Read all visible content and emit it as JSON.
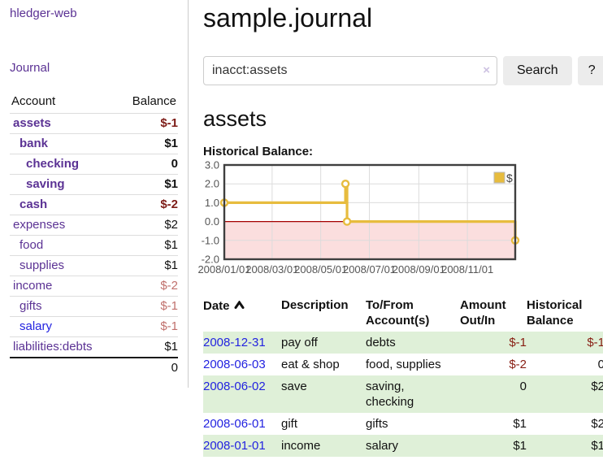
{
  "app": {
    "title": "hledger-web",
    "nav_journal": "Journal"
  },
  "colors": {
    "link_purple": "#5b3294",
    "link_blue": "#2323e0",
    "negative_strong": "#7d1c17",
    "negative_soft": "#c0706c",
    "row_green": "#dff0d8",
    "chart_gold": "#e7bc3e",
    "chart_negative_region": "#fbdede",
    "chart_zero_line": "#a40000"
  },
  "sidebar": {
    "header": {
      "account": "Account",
      "balance": "Balance"
    },
    "accounts": [
      {
        "name": "assets",
        "indent": 1,
        "bold": true,
        "link": "purple",
        "balance": "$-1",
        "neg": "strong"
      },
      {
        "name": "bank",
        "indent": 2,
        "bold": true,
        "link": "purple",
        "balance": "$1",
        "neg": ""
      },
      {
        "name": "checking",
        "indent": 3,
        "bold": true,
        "link": "purple",
        "balance": "0",
        "neg": ""
      },
      {
        "name": "saving",
        "indent": 3,
        "bold": true,
        "link": "purple",
        "balance": "$1",
        "neg": ""
      },
      {
        "name": "cash",
        "indent": 2,
        "bold": true,
        "link": "purple",
        "balance": "$-2",
        "neg": "strong"
      },
      {
        "name": "expenses",
        "indent": 1,
        "bold": false,
        "link": "purple",
        "balance": "$2",
        "neg": ""
      },
      {
        "name": "food",
        "indent": 2,
        "bold": false,
        "link": "purple",
        "balance": "$1",
        "neg": ""
      },
      {
        "name": "supplies",
        "indent": 2,
        "bold": false,
        "link": "purple",
        "balance": "$1",
        "neg": ""
      },
      {
        "name": "income",
        "indent": 1,
        "bold": false,
        "link": "purple",
        "balance": "$-2",
        "neg": "soft"
      },
      {
        "name": "gifts",
        "indent": 2,
        "bold": false,
        "link": "purple",
        "balance": "$-1",
        "neg": "soft"
      },
      {
        "name": "salary",
        "indent": 2,
        "bold": false,
        "link": "blue",
        "balance": "$-1",
        "neg": "soft"
      },
      {
        "name": "liabilities:debts",
        "indent": 1,
        "bold": false,
        "link": "purple",
        "balance": "$1",
        "neg": ""
      }
    ],
    "total": "0"
  },
  "main": {
    "title": "sample.journal",
    "search": {
      "value": "inacct:assets",
      "clear_icon": "×",
      "button_label": "Search",
      "help_label": "?"
    },
    "account_heading": "assets",
    "chart_label": "Historical Balance:"
  },
  "chart_data": {
    "type": "line",
    "title": "Historical Balance",
    "step": true,
    "series": [
      {
        "name": "$",
        "color": "#e7bc3e",
        "points": [
          [
            "2008-01-01",
            1
          ],
          [
            "2008-06-01",
            2
          ],
          [
            "2008-06-03",
            0
          ],
          [
            "2008-12-31",
            -1
          ]
        ]
      }
    ],
    "x_domain": [
      "2008-01-01",
      "2008-12-31"
    ],
    "x_tick_labels": [
      "2008/01/01",
      "2008/03/01",
      "2008/05/01",
      "2008/07/01",
      "2008/09/01",
      "2008/11/01"
    ],
    "y_ticks": [
      3.0,
      2.0,
      1.0,
      0.0,
      -1.0,
      -2.0
    ],
    "ylim": [
      -2,
      3
    ],
    "grid": true,
    "negative_region_color": "#fbdede",
    "zero_line_color": "#a40000",
    "legend": {
      "label": "$",
      "position": "top-right"
    }
  },
  "table": {
    "headers": {
      "date": "Date",
      "description": "Description",
      "tofrom_line1": "To/From",
      "tofrom_line2": "Account(s)",
      "amount_line1": "Amount",
      "amount_line2": "Out/In",
      "hist_line1": "Historical",
      "hist_line2": "Balance"
    },
    "rows": [
      {
        "date": "2008-12-31",
        "description": "pay off",
        "accounts": "debts",
        "amount": "$-1",
        "amount_neg": true,
        "balance": "$-1",
        "balance_neg": true
      },
      {
        "date": "2008-06-03",
        "description": "eat & shop",
        "accounts": "food, supplies",
        "amount": "$-2",
        "amount_neg": true,
        "balance": "0",
        "balance_neg": false
      },
      {
        "date": "2008-06-02",
        "description": "save",
        "accounts": "saving, checking",
        "amount": "0",
        "amount_neg": false,
        "balance": "$2",
        "balance_neg": false
      },
      {
        "date": "2008-06-01",
        "description": "gift",
        "accounts": "gifts",
        "amount": "$1",
        "amount_neg": false,
        "balance": "$2",
        "balance_neg": false
      },
      {
        "date": "2008-01-01",
        "description": "income",
        "accounts": "salary",
        "amount": "$1",
        "amount_neg": false,
        "balance": "$1",
        "balance_neg": false
      }
    ]
  }
}
